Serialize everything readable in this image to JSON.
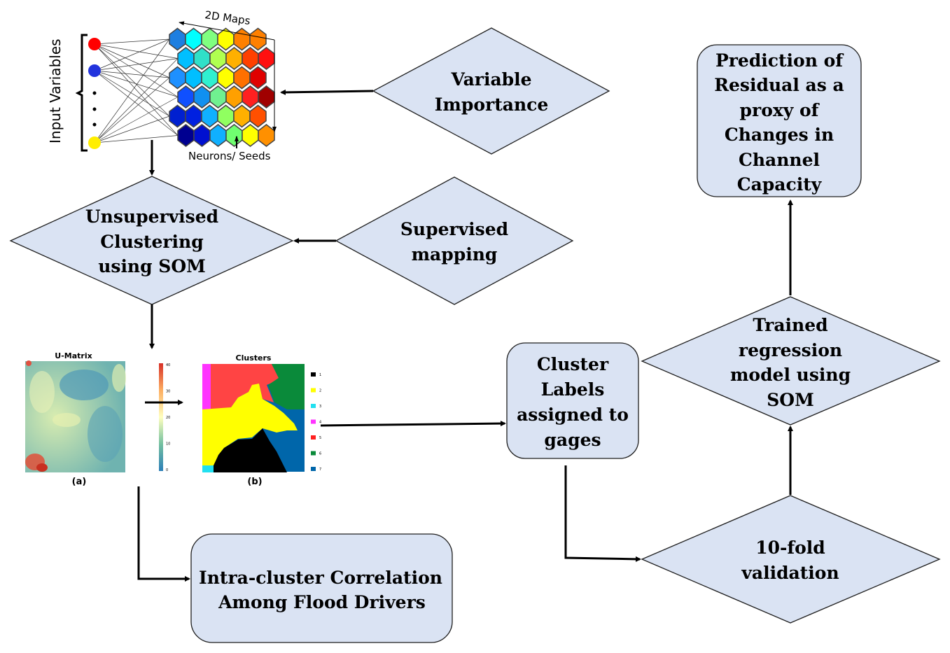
{
  "som_figure": {
    "map_label": "2D Maps",
    "input_label": "Input Variables",
    "neurons_label": "Neurons/ Seeds",
    "input_node_colors": [
      "#ff0000",
      "#2233dd",
      "#ffee00"
    ],
    "hex_colors": [
      [
        "#1e7fe0",
        "#00ffff",
        "#80ff80",
        "#ffff00",
        "#ff8000",
        "#ff8000"
      ],
      [
        "#00bfff",
        "#30e0c8",
        "#b0ff50",
        "#ffb000",
        "#ff4000",
        "#ff1010"
      ],
      [
        "#1e90ff",
        "#00bfff",
        "#30f0d0",
        "#ffff00",
        "#ff7000",
        "#e00000"
      ],
      [
        "#1050ff",
        "#1090f0",
        "#70f090",
        "#ffa000",
        "#ff2020",
        "#a00000"
      ],
      [
        "#0020d0",
        "#0020e0",
        "#10b0ff",
        "#90ff60",
        "#ffb000",
        "#ff5000"
      ],
      [
        "#000090",
        "#0010d0",
        "#10b0ff",
        "#70ff70",
        "#ffff00",
        "#ff9000"
      ]
    ]
  },
  "nodes": {
    "variable_importance": [
      "Variable",
      "Importance"
    ],
    "unsupervised": [
      "Unsupervised",
      "Clustering",
      "using SOM"
    ],
    "supervised": [
      "Supervised",
      "mapping"
    ],
    "cluster_labels": [
      "Cluster",
      "Labels",
      "assigned to",
      "gages"
    ],
    "trained_regression": [
      "Trained",
      "regression",
      "model using",
      "SOM"
    ],
    "ten_fold": [
      "10-fold",
      "validation"
    ],
    "prediction": [
      "Prediction of",
      "Residual as a",
      "proxy of",
      "Changes in",
      "Channel",
      "Capacity"
    ],
    "intra_cluster": [
      "Intra-cluster Correlation",
      "Among Flood Drivers"
    ]
  },
  "umatrix": {
    "title": "U-Matrix",
    "caption": "(a)",
    "colorbar_ticks": [
      "40",
      "30",
      "20",
      "10",
      "0"
    ]
  },
  "clusters": {
    "title": "Clusters",
    "caption": "(b)",
    "legend": [
      {
        "label": "1",
        "color": "#000000"
      },
      {
        "label": "2",
        "color": "#ffff00"
      },
      {
        "label": "3",
        "color": "#22e0f0"
      },
      {
        "label": "4",
        "color": "#ff33ff"
      },
      {
        "label": "5",
        "color": "#ff2020"
      },
      {
        "label": "6",
        "color": "#0a8a3a"
      },
      {
        "label": "7",
        "color": "#0066aa"
      }
    ]
  }
}
